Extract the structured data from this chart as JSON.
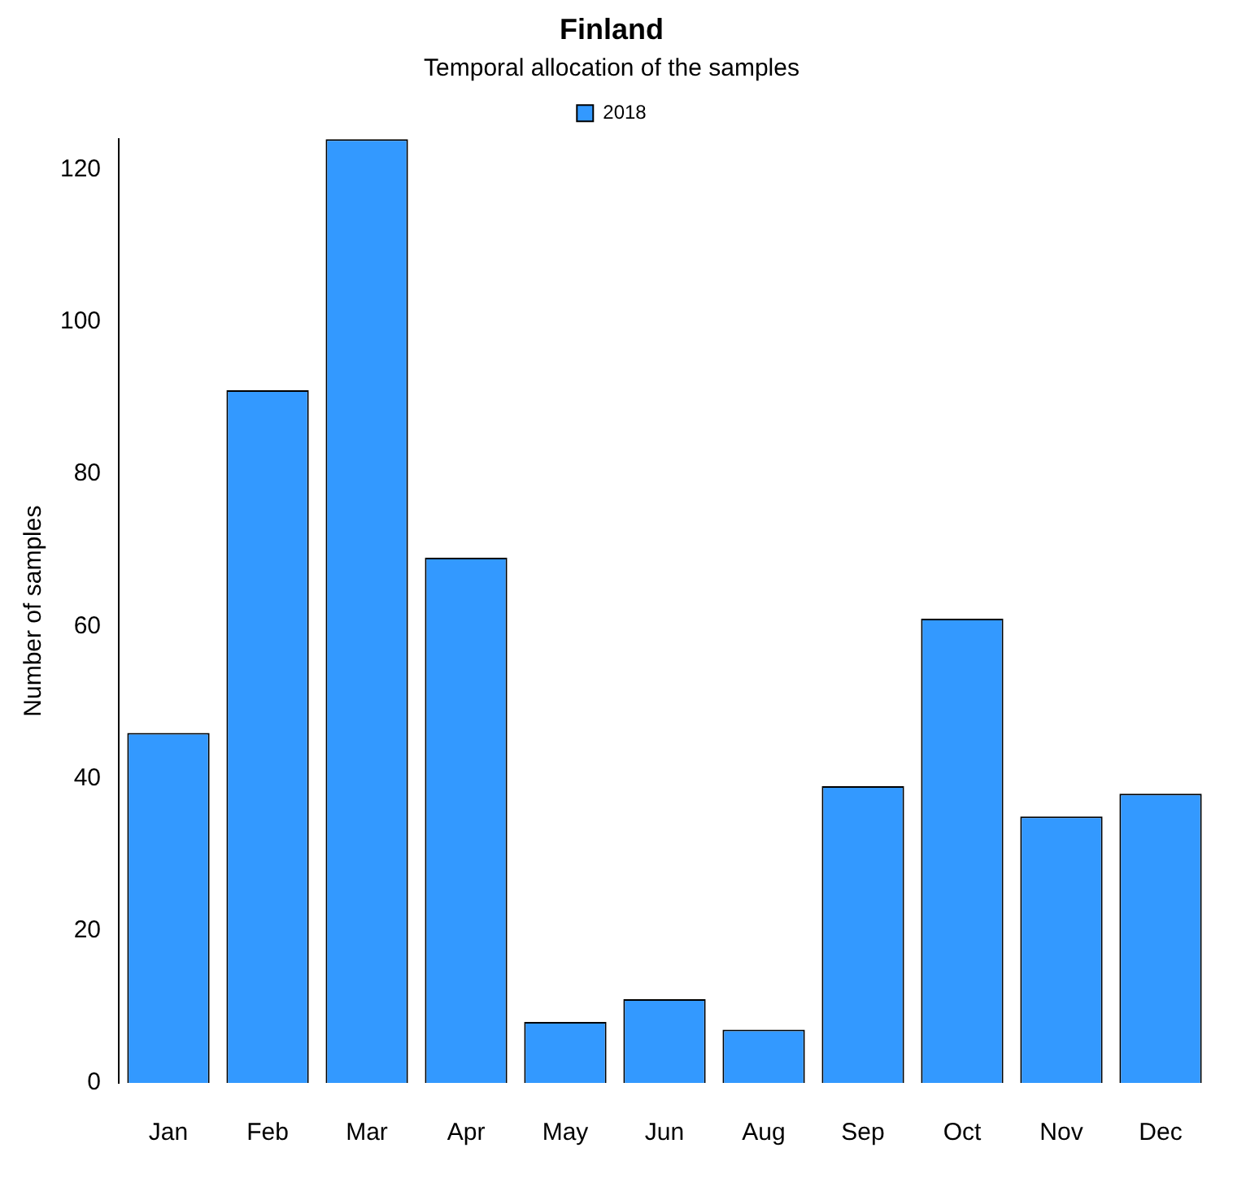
{
  "chart_data": {
    "type": "bar",
    "title": "Finland",
    "subtitle": "Temporal allocation of the samples",
    "ylabel": "Number of samples",
    "categories": [
      "Jan",
      "Feb",
      "Mar",
      "Apr",
      "May",
      "Jun",
      "Aug",
      "Sep",
      "Oct",
      "Nov",
      "Dec"
    ],
    "series": [
      {
        "name": "2018",
        "color": "#3399ff",
        "values": [
          46,
          91,
          124,
          69,
          8,
          11,
          7,
          39,
          61,
          35,
          38
        ]
      }
    ],
    "ylim": [
      0,
      124
    ],
    "yticks": [
      0,
      20,
      40,
      60,
      80,
      100,
      120
    ],
    "grid": false,
    "legend": "top"
  }
}
